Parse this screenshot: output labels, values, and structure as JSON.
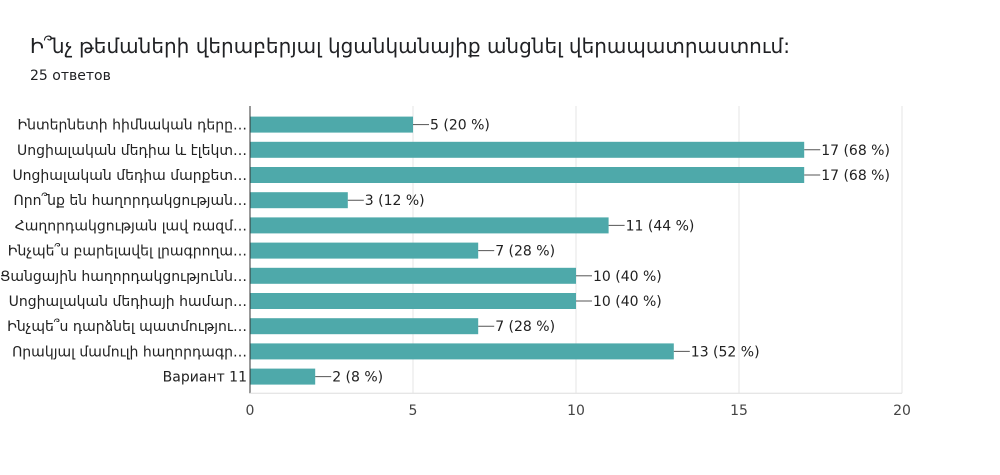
{
  "header": {
    "question": "Ի՞նչ թեմաների վերաբերյալ կցանկանայիք անցնել վերապատրաստում:",
    "responses": "25 ответов"
  },
  "chart_data": {
    "type": "bar",
    "orientation": "horizontal",
    "categories": [
      "Ինտերնետի հիմնական դերը…",
      "Սոցիալական մեդիա և էլեկտ…",
      "Սոցիալական մեդիա մարքետ…",
      "Որո՞նք են հաղորդակցության…",
      "Հաղորդակցության լավ ռազմ…",
      "Ինչպե՞ս բարելավել լրագրողա…",
      "Ցանցային հաղորդակցությունն…",
      "Սոցիալական մեդիայի համար…",
      "Ինչպե՞ս դարձնել պատմությու…",
      "Որակյալ մամուլի հաղորդագր…",
      "Вариант 11"
    ],
    "values": [
      5,
      17,
      17,
      3,
      11,
      7,
      10,
      10,
      7,
      13,
      2
    ],
    "data_labels": [
      "5 (20 %)",
      "17 (68 %)",
      "17 (68 %)",
      "3 (12 %)",
      "11 (44 %)",
      "7 (28 %)",
      "10 (40 %)",
      "10 (40 %)",
      "7 (28 %)",
      "13 (52 %)",
      "2 (8 %)"
    ],
    "xlim": [
      0,
      20
    ],
    "xticks": [
      "0",
      "5",
      "10",
      "15",
      "20"
    ],
    "grid": true,
    "color": "#4ea9aa"
  }
}
